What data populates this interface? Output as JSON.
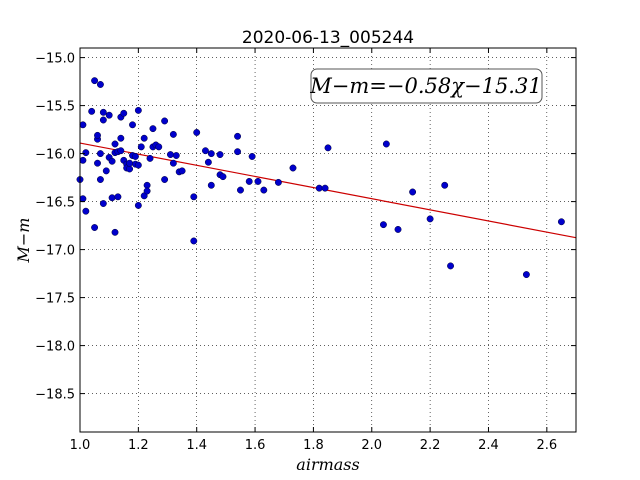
{
  "chart_data": {
    "type": "scatter",
    "title": "2020-06-13_005244",
    "xlabel": "airmass",
    "ylabel": "M−m",
    "xlim": [
      1.0,
      2.7
    ],
    "ylim": [
      -18.9,
      -14.9
    ],
    "y_inverted": true,
    "grid": true,
    "x_ticks": [
      "1.0",
      "1.2",
      "1.4",
      "1.6",
      "1.8",
      "2.0",
      "2.2",
      "2.4",
      "2.6"
    ],
    "y_ticks": [
      "−15.0",
      "−15.5",
      "−16.0",
      "−16.5",
      "−17.0",
      "−17.5",
      "−18.0",
      "−18.5"
    ],
    "annotation": "M−m=−0.58χ−15.31",
    "fit_line": {
      "slope": -0.58,
      "intercept": -15.31,
      "color": "#cc0000"
    },
    "point_color": "#0000cc",
    "points": [
      [
        1.0,
        -16.27
      ],
      [
        1.01,
        -16.47
      ],
      [
        1.01,
        -16.07
      ],
      [
        1.01,
        -15.7
      ],
      [
        1.02,
        -15.99
      ],
      [
        1.02,
        -16.6
      ],
      [
        1.04,
        -15.56
      ],
      [
        1.05,
        -15.24
      ],
      [
        1.05,
        -16.77
      ],
      [
        1.06,
        -16.1
      ],
      [
        1.06,
        -15.85
      ],
      [
        1.06,
        -15.81
      ],
      [
        1.07,
        -15.28
      ],
      [
        1.07,
        -16.27
      ],
      [
        1.07,
        -16.0
      ],
      [
        1.08,
        -15.57
      ],
      [
        1.08,
        -15.65
      ],
      [
        1.08,
        -16.52
      ],
      [
        1.09,
        -16.18
      ],
      [
        1.1,
        -15.6
      ],
      [
        1.1,
        -16.04
      ],
      [
        1.11,
        -16.46
      ],
      [
        1.11,
        -16.08
      ],
      [
        1.12,
        -15.99
      ],
      [
        1.12,
        -16.82
      ],
      [
        1.12,
        -15.9
      ],
      [
        1.13,
        -16.45
      ],
      [
        1.13,
        -15.98
      ],
      [
        1.14,
        -15.62
      ],
      [
        1.14,
        -15.97
      ],
      [
        1.14,
        -15.84
      ],
      [
        1.15,
        -15.58
      ],
      [
        1.15,
        -16.07
      ],
      [
        1.16,
        -16.11
      ],
      [
        1.16,
        -16.15
      ],
      [
        1.17,
        -16.16
      ],
      [
        1.17,
        -16.1
      ],
      [
        1.18,
        -15.7
      ],
      [
        1.18,
        -16.02
      ],
      [
        1.19,
        -16.11
      ],
      [
        1.19,
        -16.03
      ],
      [
        1.2,
        -16.54
      ],
      [
        1.2,
        -16.12
      ],
      [
        1.2,
        -15.55
      ],
      [
        1.21,
        -15.93
      ],
      [
        1.22,
        -15.84
      ],
      [
        1.22,
        -16.44
      ],
      [
        1.23,
        -16.33
      ],
      [
        1.23,
        -16.39
      ],
      [
        1.24,
        -16.05
      ],
      [
        1.25,
        -15.74
      ],
      [
        1.25,
        -15.93
      ],
      [
        1.26,
        -15.91
      ],
      [
        1.27,
        -15.93
      ],
      [
        1.29,
        -15.66
      ],
      [
        1.29,
        -16.27
      ],
      [
        1.31,
        -16.01
      ],
      [
        1.32,
        -15.8
      ],
      [
        1.32,
        -16.1
      ],
      [
        1.33,
        -16.02
      ],
      [
        1.34,
        -16.19
      ],
      [
        1.35,
        -16.18
      ],
      [
        1.39,
        -16.45
      ],
      [
        1.39,
        -16.91
      ],
      [
        1.4,
        -15.78
      ],
      [
        1.43,
        -15.97
      ],
      [
        1.44,
        -16.09
      ],
      [
        1.45,
        -16.33
      ],
      [
        1.45,
        -16.0
      ],
      [
        1.48,
        -16.22
      ],
      [
        1.48,
        -16.01
      ],
      [
        1.49,
        -16.24
      ],
      [
        1.54,
        -15.82
      ],
      [
        1.54,
        -15.98
      ],
      [
        1.55,
        -16.38
      ],
      [
        1.58,
        -16.29
      ],
      [
        1.59,
        -16.03
      ],
      [
        1.61,
        -16.29
      ],
      [
        1.63,
        -16.38
      ],
      [
        1.68,
        -16.3
      ],
      [
        1.73,
        -16.15
      ],
      [
        1.82,
        -16.36
      ],
      [
        1.84,
        -16.36
      ],
      [
        1.85,
        -15.94
      ],
      [
        2.04,
        -16.74
      ],
      [
        2.05,
        -15.9
      ],
      [
        2.09,
        -16.79
      ],
      [
        2.14,
        -16.4
      ],
      [
        2.2,
        -16.68
      ],
      [
        2.25,
        -16.33
      ],
      [
        2.27,
        -17.17
      ],
      [
        2.53,
        -17.26
      ],
      [
        2.65,
        -16.71
      ]
    ]
  }
}
